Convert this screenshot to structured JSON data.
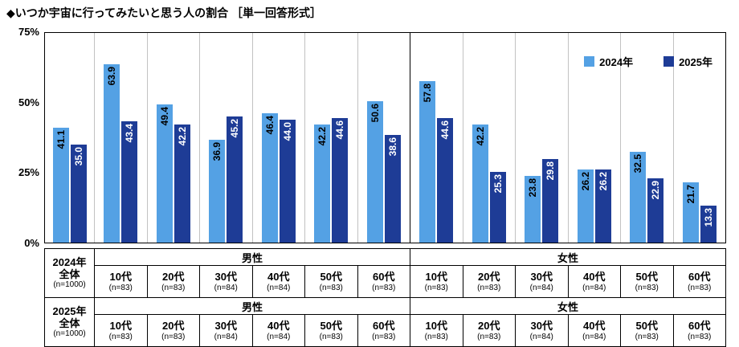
{
  "title": "◆いつか宇宙に行ってみたいと思う人の割合 ［単一回答形式］",
  "colors": {
    "series_2024": "#54a1e4",
    "series_2025": "#1e3c96"
  },
  "legend": {
    "items": [
      {
        "key": "2024",
        "label": "2024年",
        "color_key": "series_2024"
      },
      {
        "key": "2025",
        "label": "2025年",
        "color_key": "series_2025"
      }
    ]
  },
  "y_axis": {
    "max": 75,
    "ticks": [
      {
        "label": "75%",
        "value": 75
      },
      {
        "label": "50%",
        "value": 50
      },
      {
        "label": "25%",
        "value": 25
      },
      {
        "label": "0%",
        "value": 0
      }
    ]
  },
  "chart_data": {
    "type": "bar",
    "title": "いつか宇宙に行ってみたいと思う人の割合",
    "ylim": [
      0,
      75
    ],
    "yticks": [
      "0%",
      "25%",
      "50%",
      "75%"
    ],
    "legend_position": "top-right",
    "series_names": [
      "2024年",
      "2025年"
    ],
    "groups": [
      {
        "key": "total",
        "category": "全体 (n=1000)",
        "values": [
          41.1,
          35.0
        ],
        "labels": [
          "41.1",
          "35.0"
        ],
        "divider_after": "light"
      },
      {
        "key": "male-10s",
        "category": "男性10代",
        "values": [
          63.9,
          43.4
        ],
        "labels": [
          "63.9",
          "43.4"
        ],
        "divider_after": "light"
      },
      {
        "key": "male-20s",
        "category": "男性20代",
        "values": [
          49.4,
          42.2
        ],
        "labels": [
          "49.4",
          "42.2"
        ],
        "divider_after": "light"
      },
      {
        "key": "male-30s",
        "category": "男性30代",
        "values": [
          36.9,
          45.2
        ],
        "labels": [
          "36.9",
          "45.2"
        ],
        "divider_after": "light"
      },
      {
        "key": "male-40s",
        "category": "男性40代",
        "values": [
          46.4,
          44.0
        ],
        "labels": [
          "46.4",
          "44.0"
        ],
        "divider_after": "light"
      },
      {
        "key": "male-50s",
        "category": "男性50代",
        "values": [
          42.2,
          44.6
        ],
        "labels": [
          "42.2",
          "44.6"
        ],
        "divider_after": "light"
      },
      {
        "key": "male-60s",
        "category": "男性60代",
        "values": [
          50.6,
          38.6
        ],
        "labels": [
          "50.6",
          "38.6"
        ],
        "divider_after": "dark"
      },
      {
        "key": "female-10s",
        "category": "女性10代",
        "values": [
          57.8,
          44.6
        ],
        "labels": [
          "57.8",
          "44.6"
        ],
        "divider_after": "light"
      },
      {
        "key": "female-20s",
        "category": "女性20代",
        "values": [
          42.2,
          25.3
        ],
        "labels": [
          "42.2",
          "25.3"
        ],
        "divider_after": "light"
      },
      {
        "key": "female-30s",
        "category": "女性30代",
        "values": [
          23.8,
          29.8
        ],
        "labels": [
          "23.8",
          "29.8"
        ],
        "divider_after": "light"
      },
      {
        "key": "female-40s",
        "category": "女性40代",
        "values": [
          26.2,
          26.2
        ],
        "labels": [
          "26.2",
          "26.2"
        ],
        "divider_after": "light"
      },
      {
        "key": "female-50s",
        "category": "女性50代",
        "values": [
          32.5,
          22.9
        ],
        "labels": [
          "32.5",
          "22.9"
        ],
        "divider_after": "light"
      },
      {
        "key": "female-60s",
        "category": "女性60代",
        "values": [
          21.7,
          13.3
        ],
        "labels": [
          "21.7",
          "13.3"
        ],
        "divider_after": "none"
      }
    ]
  },
  "table": {
    "sections": [
      {
        "key": "2024",
        "year_label": "2024年",
        "total_label": "全体",
        "total_n": "(n=1000)",
        "genders": [
          {
            "key": "male",
            "label": "男性"
          },
          {
            "key": "female",
            "label": "女性"
          }
        ],
        "age_cells": [
          {
            "age": "10代",
            "n": "(n=83)"
          },
          {
            "age": "20代",
            "n": "(n=83)"
          },
          {
            "age": "30代",
            "n": "(n=84)"
          },
          {
            "age": "40代",
            "n": "(n=84)"
          },
          {
            "age": "50代",
            "n": "(n=83)"
          },
          {
            "age": "60代",
            "n": "(n=83)"
          },
          {
            "age": "10代",
            "n": "(n=83)"
          },
          {
            "age": "20代",
            "n": "(n=83)"
          },
          {
            "age": "30代",
            "n": "(n=84)"
          },
          {
            "age": "40代",
            "n": "(n=84)"
          },
          {
            "age": "50代",
            "n": "(n=83)"
          },
          {
            "age": "60代",
            "n": "(n=83)"
          }
        ]
      },
      {
        "key": "2025",
        "year_label": "2025年",
        "total_label": "全体",
        "total_n": "(n=1000)",
        "genders": [
          {
            "key": "male",
            "label": "男性"
          },
          {
            "key": "female",
            "label": "女性"
          }
        ],
        "age_cells": [
          {
            "age": "10代",
            "n": "(n=83)"
          },
          {
            "age": "20代",
            "n": "(n=83)"
          },
          {
            "age": "30代",
            "n": "(n=84)"
          },
          {
            "age": "40代",
            "n": "(n=84)"
          },
          {
            "age": "50代",
            "n": "(n=83)"
          },
          {
            "age": "60代",
            "n": "(n=83)"
          },
          {
            "age": "10代",
            "n": "(n=83)"
          },
          {
            "age": "20代",
            "n": "(n=83)"
          },
          {
            "age": "30代",
            "n": "(n=84)"
          },
          {
            "age": "40代",
            "n": "(n=84)"
          },
          {
            "age": "50代",
            "n": "(n=83)"
          },
          {
            "age": "60代",
            "n": "(n=83)"
          }
        ]
      }
    ]
  }
}
